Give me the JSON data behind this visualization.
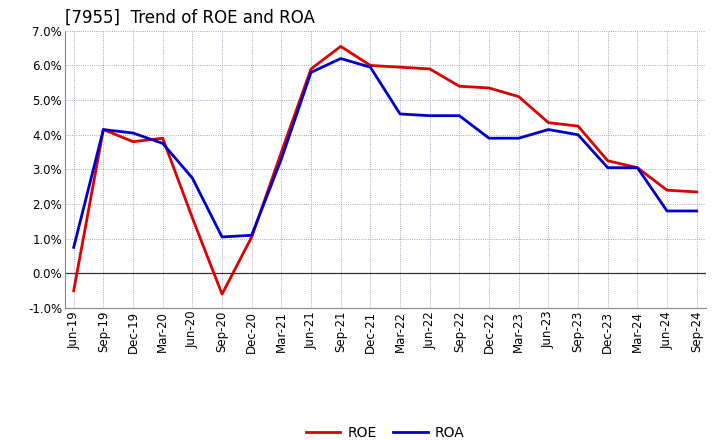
{
  "title": "[7955]  Trend of ROE and ROA",
  "x_labels": [
    "Jun-19",
    "Sep-19",
    "Dec-19",
    "Mar-20",
    "Jun-20",
    "Sep-20",
    "Dec-20",
    "Mar-21",
    "Jun-21",
    "Sep-21",
    "Dec-21",
    "Mar-22",
    "Jun-22",
    "Sep-22",
    "Dec-22",
    "Mar-23",
    "Jun-23",
    "Sep-23",
    "Dec-23",
    "Mar-24",
    "Jun-24",
    "Sep-24"
  ],
  "roe": [
    -0.5,
    4.15,
    3.8,
    3.9,
    1.6,
    -0.6,
    1.05,
    3.5,
    5.9,
    6.55,
    6.0,
    5.95,
    5.9,
    5.4,
    5.35,
    5.1,
    4.35,
    4.25,
    3.25,
    3.05,
    2.4,
    2.35
  ],
  "roa": [
    0.75,
    4.15,
    4.05,
    3.75,
    2.75,
    1.05,
    1.1,
    3.3,
    5.8,
    6.2,
    5.95,
    4.6,
    4.55,
    4.55,
    3.9,
    3.9,
    4.15,
    4.0,
    3.05,
    3.05,
    1.8,
    1.8
  ],
  "roe_color": "#dd0000",
  "roa_color": "#0000cc",
  "ylim": [
    -1.0,
    7.0
  ],
  "yticks": [
    -1.0,
    0.0,
    1.0,
    2.0,
    3.0,
    4.0,
    5.0,
    6.0,
    7.0
  ],
  "background_color": "#ffffff",
  "grid_color": "#8888aa",
  "title_fontsize": 12,
  "axis_fontsize": 8.5,
  "legend_fontsize": 10,
  "line_width": 2.0
}
